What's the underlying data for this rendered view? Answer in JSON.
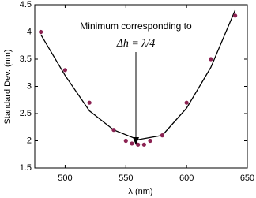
{
  "chart_data": {
    "type": "scatter",
    "xlabel": "λ (nm)",
    "ylabel": "Standard Dev. (nm)",
    "annotation": [
      "Minimum corresponding to",
      "Δh = λ/4"
    ],
    "xlim": [
      475,
      650
    ],
    "xticks": [
      500,
      550,
      600,
      650
    ],
    "ylim": [
      1.5,
      4.5
    ],
    "yticks": [
      1.5,
      2,
      2.5,
      3,
      3.5,
      4,
      4.5
    ],
    "points": {
      "color": "#8b2252",
      "x": [
        480,
        500,
        520,
        540,
        550,
        555,
        560,
        565,
        570,
        580,
        600,
        620,
        640
      ],
      "values": [
        4.0,
        3.3,
        2.7,
        2.2,
        2.0,
        1.95,
        1.93,
        1.93,
        2.0,
        2.1,
        2.7,
        3.5,
        4.3
      ]
    },
    "fit": {
      "color": "#000000",
      "x": [
        480,
        500,
        520,
        540,
        560,
        580,
        600,
        620,
        640
      ],
      "values": [
        3.95,
        3.2,
        2.55,
        2.2,
        2.02,
        2.1,
        2.6,
        3.35,
        4.4
      ]
    }
  }
}
